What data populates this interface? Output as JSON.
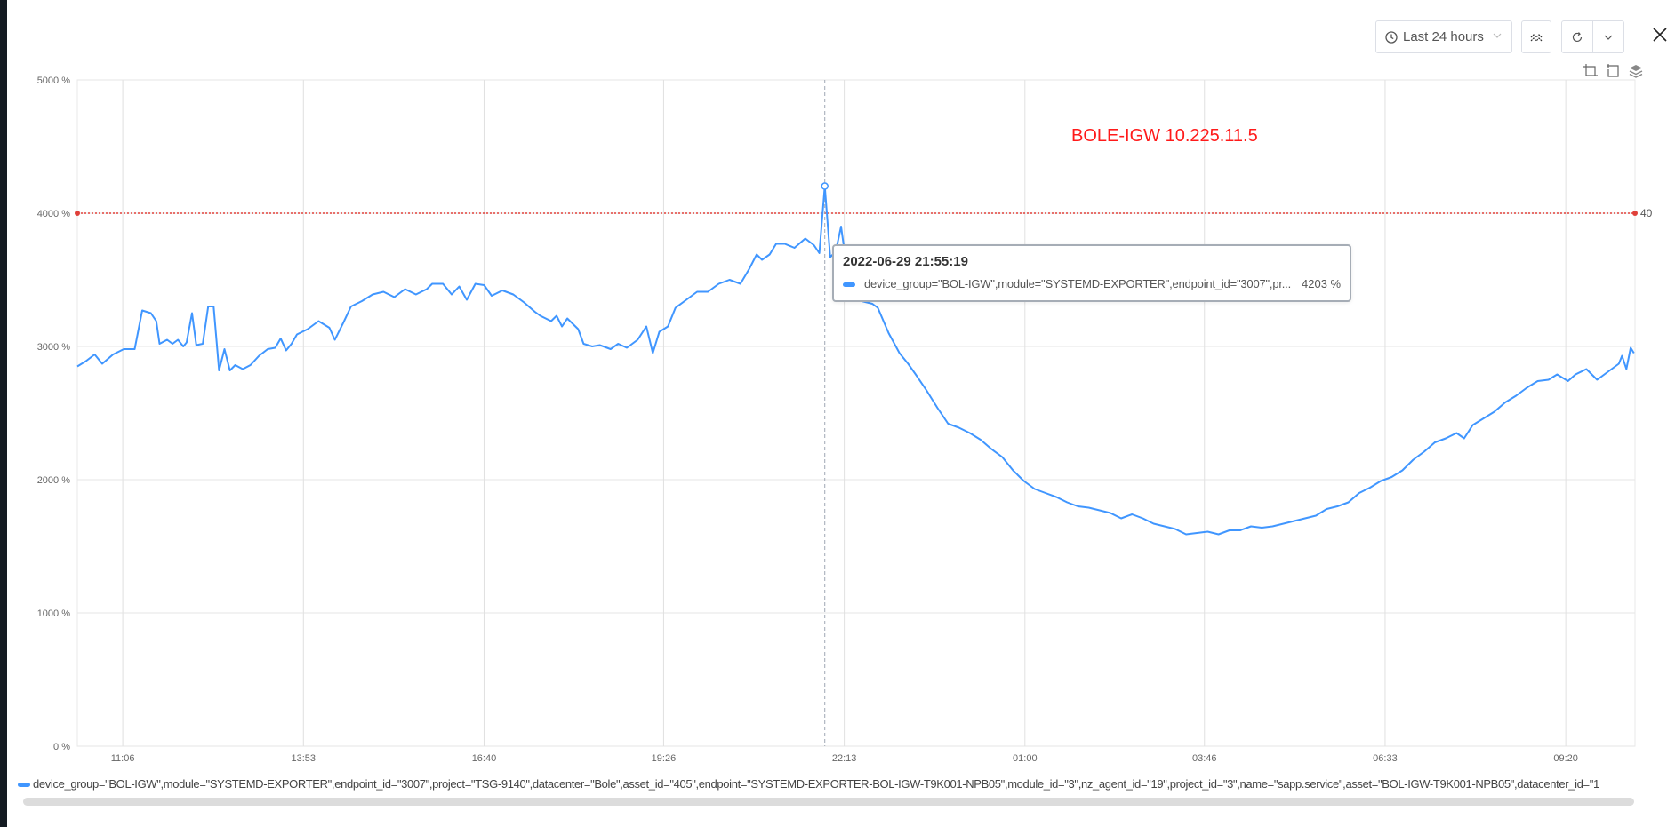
{
  "toolbar": {
    "time_range": "Last 24 hours",
    "icons": {
      "clock": "clock-icon",
      "compare": "compare-icon",
      "refresh": "refresh-icon",
      "dropdown": "chevron-down-icon",
      "close": "close-icon",
      "zoom": "crop-icon",
      "reset": "undo-crop-icon",
      "layers": "layers-icon"
    }
  },
  "title": "BOLE-IGW 10.225.11.5",
  "tooltip": {
    "time": "2022-06-29 21:55:19",
    "series": "device_group=\"BOL-IGW\",module=\"SYSTEMD-EXPORTER\",endpoint_id=\"3007\",pr...",
    "value": "4203 %"
  },
  "legend": {
    "items": [
      {
        "label": "device_group=\"BOL-IGW\",module=\"SYSTEMD-EXPORTER\",endpoint_id=\"3007\",project=\"TSG-9140\",datacenter=\"Bole\",asset_id=\"405\",endpoint=\"SYSTEMD-EXPORTER-BOL-IGW-T9K001-NPB05\",module_id=\"3\",nz_agent_id=\"19\",project_id=\"3\",name=\"sapp.service\",asset=\"BOL-IGW-T9K001-NPB05\",datacenter_id=\"1",
        "color": "#4096ff"
      }
    ]
  },
  "chart_data": {
    "type": "line",
    "xlim": [
      "10:24",
      "10:24"
    ],
    "ylim": [
      0,
      5000
    ],
    "y_ticks": [
      "0 %",
      "1000 %",
      "2000 %",
      "3000 %",
      "4000 %",
      "5000 %"
    ],
    "y_tick_values": [
      0,
      1000,
      2000,
      3000,
      4000,
      5000
    ],
    "x_ticks": [
      "11:06",
      "13:53",
      "16:40",
      "19:26",
      "22:13",
      "01:00",
      "03:46",
      "06:33",
      "09:20"
    ],
    "grid": true,
    "legend_position": "bottom",
    "threshold": {
      "value": 4000,
      "label": "40",
      "color": "#e0403a"
    },
    "cursor": "21:55",
    "series": [
      {
        "color": "#4096ff",
        "x": [
          "10:24",
          "10:32",
          "10:40",
          "10:47",
          "10:57",
          "11:07",
          "11:17",
          "11:24",
          "11:32",
          "11:37",
          "11:40",
          "11:47",
          "11:52",
          "11:57",
          "12:02",
          "12:05",
          "12:10",
          "12:14",
          "12:20",
          "12:25",
          "12:30",
          "12:35",
          "12:40",
          "12:45",
          "12:50",
          "12:57",
          "13:04",
          "13:12",
          "13:20",
          "13:27",
          "13:32",
          "13:37",
          "13:42",
          "13:47",
          "13:57",
          "14:07",
          "14:17",
          "14:22",
          "14:30",
          "14:37",
          "14:47",
          "14:57",
          "15:07",
          "15:17",
          "15:27",
          "15:37",
          "15:47",
          "15:52",
          "16:02",
          "16:10",
          "16:17",
          "16:24",
          "16:32",
          "16:40",
          "16:47",
          "16:57",
          "17:07",
          "17:17",
          "17:27",
          "17:32",
          "17:42",
          "17:47",
          "17:52",
          "17:57",
          "18:07",
          "18:12",
          "18:20",
          "18:27",
          "18:37",
          "18:44",
          "18:52",
          "19:02",
          "19:10",
          "19:16",
          "19:22",
          "19:30",
          "19:37",
          "19:47",
          "19:57",
          "20:07",
          "20:17",
          "20:27",
          "20:37",
          "20:45",
          "20:52",
          "20:57",
          "21:04",
          "21:10",
          "21:18",
          "21:27",
          "21:37",
          "21:45",
          "21:50",
          "21:55",
          "22:00",
          "22:05",
          "22:10",
          "22:14",
          "22:19",
          "22:29",
          "22:39",
          "22:44",
          "22:54",
          "23:04",
          "23:12",
          "23:19",
          "23:29",
          "23:39",
          "23:49",
          "23:59",
          "00:09",
          "00:19",
          "00:29",
          "00:39",
          "00:49",
          "00:59",
          "01:09",
          "01:19",
          "01:29",
          "01:39",
          "01:49",
          "01:59",
          "02:09",
          "02:19",
          "02:29",
          "02:39",
          "02:49",
          "02:59",
          "03:09",
          "03:19",
          "03:29",
          "03:39",
          "03:49",
          "03:59",
          "04:09",
          "04:19",
          "04:29",
          "04:39",
          "04:49",
          "04:59",
          "05:14",
          "05:29",
          "05:39",
          "05:49",
          "05:59",
          "06:09",
          "06:19",
          "06:29",
          "06:39",
          "06:49",
          "06:59",
          "07:09",
          "07:19",
          "07:29",
          "07:39",
          "07:46",
          "07:54",
          "08:04",
          "08:14",
          "08:24",
          "08:34",
          "08:44",
          "08:54",
          "09:04",
          "09:12",
          "09:22",
          "09:29",
          "09:39",
          "09:49",
          "09:59",
          "10:09",
          "10:12",
          "10:16",
          "10:20",
          "10:23"
        ],
        "y": [
          2850,
          2890,
          2940,
          2870,
          2940,
          2980,
          2980,
          3270,
          3250,
          3190,
          3020,
          3050,
          3020,
          3050,
          3000,
          3030,
          3250,
          3010,
          3020,
          3300,
          3300,
          2820,
          2980,
          2820,
          2860,
          2830,
          2860,
          2930,
          2980,
          2990,
          3060,
          2970,
          3020,
          3090,
          3130,
          3190,
          3140,
          3050,
          3180,
          3300,
          3340,
          3390,
          3410,
          3370,
          3430,
          3390,
          3430,
          3470,
          3470,
          3390,
          3450,
          3350,
          3470,
          3460,
          3380,
          3420,
          3390,
          3330,
          3260,
          3230,
          3190,
          3230,
          3150,
          3210,
          3130,
          3020,
          3000,
          3010,
          2980,
          3020,
          2990,
          3050,
          3150,
          2950,
          3110,
          3150,
          3290,
          3350,
          3410,
          3410,
          3470,
          3500,
          3470,
          3580,
          3690,
          3650,
          3690,
          3770,
          3770,
          3740,
          3810,
          3760,
          3700,
          4203,
          3670,
          3710,
          3900,
          3670,
          3500,
          3340,
          3320,
          3290,
          3100,
          2950,
          2870,
          2790,
          2670,
          2540,
          2420,
          2390,
          2350,
          2300,
          2230,
          2170,
          2070,
          1990,
          1930,
          1900,
          1870,
          1830,
          1800,
          1790,
          1770,
          1750,
          1710,
          1740,
          1710,
          1670,
          1650,
          1630,
          1590,
          1600,
          1610,
          1590,
          1620,
          1620,
          1650,
          1640,
          1650,
          1670,
          1700,
          1730,
          1780,
          1800,
          1830,
          1900,
          1940,
          1990,
          2020,
          2070,
          2150,
          2210,
          2280,
          2310,
          2350,
          2310,
          2410,
          2460,
          2510,
          2580,
          2630,
          2690,
          2740,
          2750,
          2790,
          2740,
          2790,
          2830,
          2750,
          2810,
          2870,
          2930,
          2830,
          2990,
          2950
        ]
      }
    ]
  }
}
